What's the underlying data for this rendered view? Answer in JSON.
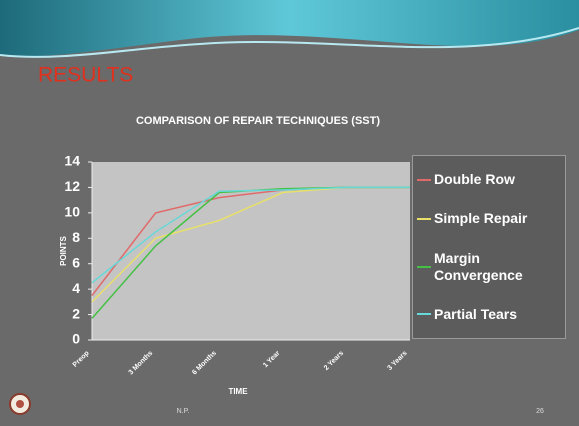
{
  "heading": "RESULTS",
  "footer": "N.P.",
  "page_number": "26",
  "chart_data": {
    "type": "line",
    "title": "COMPARISON OF REPAIR TECHNIQUES (SST)",
    "x_label": "TIME",
    "y_label": "POINTS",
    "categories": [
      "Preop",
      "3 Months",
      "6 Months",
      "1 Year",
      "2 Years",
      "3 Years"
    ],
    "series": [
      {
        "name": "Double Row",
        "color": "#e06a6a",
        "values": [
          3.5,
          10,
          11.2,
          11.8,
          12,
          12
        ]
      },
      {
        "name": "Simple Repair",
        "color": "#e8e06a",
        "values": [
          3,
          8,
          9.4,
          11.6,
          12,
          12
        ]
      },
      {
        "name": "Margin Convergence",
        "color": "#44c044",
        "values": [
          1.7,
          7.4,
          11.6,
          11.9,
          12,
          12
        ]
      },
      {
        "name": "Partial Tears",
        "color": "#66d8d8",
        "values": [
          4.5,
          8.5,
          11.7,
          11.8,
          12,
          12
        ]
      }
    ],
    "ylim": [
      0,
      14
    ],
    "yticks": [
      0,
      2,
      4,
      6,
      8,
      10,
      12,
      14
    ],
    "grid": false,
    "legend": "right"
  }
}
